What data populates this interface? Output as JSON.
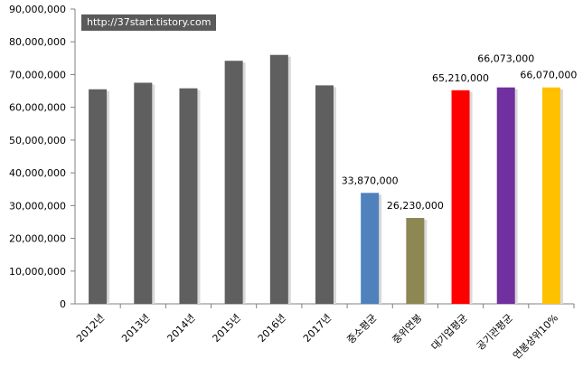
{
  "watermark": "http://37start.tistory.com",
  "chart_data": {
    "type": "bar",
    "categories": [
      "2012년",
      "2013년",
      "2014년",
      "2015년",
      "2016년",
      "2017년",
      "중소평균",
      "중위연봉",
      "대기업평균",
      "공기관평균",
      "연봉상위10%"
    ],
    "values": [
      65500000,
      67500000,
      65800000,
      74200000,
      76000000,
      66700000,
      33870000,
      26230000,
      65210000,
      66073000,
      66070000
    ],
    "colors": [
      "#5f5f5f",
      "#5f5f5f",
      "#5f5f5f",
      "#5f5f5f",
      "#5f5f5f",
      "#5f5f5f",
      "#4f81bd",
      "#8c8753",
      "#ff0000",
      "#7030a0",
      "#ffc000"
    ],
    "data_labels": [
      "",
      "",
      "",
      "",
      "",
      "",
      "33,870,000",
      "26,230,000",
      "65,210,000",
      "66,073,000",
      "66,070,000"
    ],
    "y_ticks": [
      "0",
      "10,000,000",
      "20,000,000",
      "30,000,000",
      "40,000,000",
      "50,000,000",
      "60,000,000",
      "70,000,000",
      "80,000,000",
      "90,000,000"
    ],
    "ylim": [
      0,
      90000000
    ],
    "title": "",
    "xlabel": "",
    "ylabel": "",
    "grid": false,
    "legend": "none"
  }
}
